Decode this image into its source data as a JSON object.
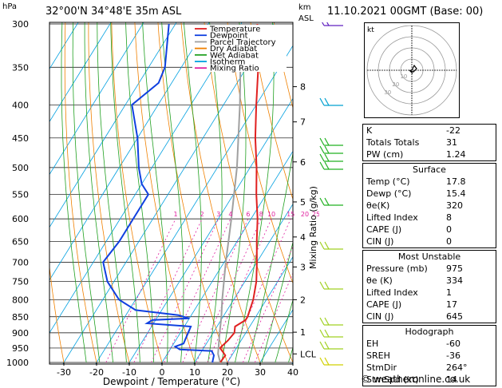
{
  "header": {
    "location": "32°00'N  34°48'E  35m  ASL",
    "datetime": "11.10.2021  00GMT  (Base: 00)",
    "hpa_label": "hPa",
    "km_label": "km",
    "asl_label": "ASL"
  },
  "chart_data": {
    "type": "skew-t",
    "xlabel": "Dewpoint / Temperature (°C)",
    "ylabel_right": "Mixing Ratio (g/kg)",
    "x_ticks": [
      -30,
      -20,
      -10,
      0,
      10,
      20,
      30,
      40
    ],
    "pressure_ticks": [
      300,
      350,
      400,
      450,
      500,
      550,
      600,
      650,
      700,
      750,
      800,
      850,
      900,
      950,
      1000
    ],
    "km_ticks": [
      {
        "label": "8",
        "p": 375
      },
      {
        "label": "7",
        "p": 425
      },
      {
        "label": "6",
        "p": 490
      },
      {
        "label": "5",
        "p": 565
      },
      {
        "label": "4",
        "p": 640
      },
      {
        "label": "3",
        "p": 712
      },
      {
        "label": "2",
        "p": 800
      },
      {
        "label": "1",
        "p": 898
      },
      {
        "label": "LCL",
        "p": 970
      }
    ],
    "mixing_ratio_labels": [
      "1",
      "2",
      "3",
      "4",
      "6",
      "8",
      "10",
      "15",
      "20",
      "25"
    ],
    "legend": [
      {
        "name": "Temperature",
        "color": "#e02020"
      },
      {
        "name": "Dewpoint",
        "color": "#1040e0"
      },
      {
        "name": "Parcel Trajectory",
        "color": "#a0a0a0"
      },
      {
        "name": "Dry Adiabat",
        "color": "#f08000"
      },
      {
        "name": "Wet Adiabat",
        "color": "#20a020"
      },
      {
        "name": "Isotherm",
        "color": "#00a0e0"
      },
      {
        "name": "Mixing Ratio",
        "color": "#e020a0"
      }
    ],
    "temperature": [
      [
        1000,
        17.8
      ],
      [
        975,
        18.0
      ],
      [
        950,
        15.0
      ],
      [
        925,
        16.0
      ],
      [
        900,
        16.5
      ],
      [
        880,
        15.5
      ],
      [
        860,
        17.5
      ],
      [
        850,
        17.5
      ],
      [
        800,
        16.0
      ],
      [
        750,
        13.5
      ],
      [
        700,
        10.0
      ],
      [
        650,
        6.0
      ],
      [
        600,
        2.0
      ],
      [
        550,
        -3.0
      ],
      [
        500,
        -8.0
      ],
      [
        450,
        -14.0
      ],
      [
        400,
        -20.0
      ],
      [
        350,
        -26.5
      ],
      [
        300,
        -35.0
      ]
    ],
    "dewpoint": [
      [
        1000,
        15.4
      ],
      [
        975,
        14.5
      ],
      [
        960,
        13.0
      ],
      [
        955,
        3.0
      ],
      [
        945,
        1.0
      ],
      [
        935,
        3.0
      ],
      [
        880,
        2.0
      ],
      [
        870,
        -12.0
      ],
      [
        860,
        -11.0
      ],
      [
        855,
        0.0
      ],
      [
        845,
        -4.0
      ],
      [
        830,
        -18.0
      ],
      [
        800,
        -25.0
      ],
      [
        750,
        -32.0
      ],
      [
        700,
        -37.0
      ],
      [
        650,
        -36.0
      ],
      [
        600,
        -36.0
      ],
      [
        550,
        -36.0
      ],
      [
        530,
        -40.0
      ],
      [
        500,
        -44.0
      ],
      [
        450,
        -50.0
      ],
      [
        400,
        -58.0
      ],
      [
        370,
        -54.0
      ],
      [
        350,
        -55.0
      ],
      [
        300,
        -62.0
      ]
    ],
    "parcel": [
      [
        1000,
        17.8
      ],
      [
        970,
        15.5
      ],
      [
        900,
        12.0
      ],
      [
        850,
        9.5
      ],
      [
        800,
        6.5
      ],
      [
        700,
        0.5
      ],
      [
        600,
        -6.0
      ],
      [
        500,
        -14.0
      ],
      [
        400,
        -25.0
      ],
      [
        300,
        -40.0
      ]
    ],
    "hodograph": {
      "label": "kt",
      "rings": [
        10,
        20,
        30,
        40
      ],
      "ring_labels": [
        "10",
        "20",
        "30"
      ]
    }
  },
  "indices": {
    "k": {
      "label": "K",
      "value": "-22"
    },
    "tt": {
      "label": "Totals Totals",
      "value": "31"
    },
    "pw": {
      "label": "PW (cm)",
      "value": "1.24"
    }
  },
  "surface": {
    "title": "Surface",
    "rows": [
      {
        "label": "Temp (°C)",
        "value": "17.8"
      },
      {
        "label": "Dewp (°C)",
        "value": "15.4"
      },
      {
        "label": "θe(K)",
        "value": "320"
      },
      {
        "label": "Lifted Index",
        "value": "8"
      },
      {
        "label": "CAPE (J)",
        "value": "0"
      },
      {
        "label": "CIN (J)",
        "value": "0"
      }
    ]
  },
  "most_unstable": {
    "title": "Most Unstable",
    "rows": [
      {
        "label": "Pressure (mb)",
        "value": "975"
      },
      {
        "label": "θe (K)",
        "value": "334"
      },
      {
        "label": "Lifted Index",
        "value": "1"
      },
      {
        "label": "CAPE (J)",
        "value": "17"
      },
      {
        "label": "CIN (J)",
        "value": "645"
      }
    ]
  },
  "hodograph_box": {
    "title": "Hodograph",
    "rows": [
      {
        "label": "EH",
        "value": "-60"
      },
      {
        "label": "SREH",
        "value": "-36"
      },
      {
        "label": "StmDir",
        "value": "264°"
      },
      {
        "label": "StmSpd (kt)",
        "value": "14"
      }
    ]
  },
  "credit": "© weatheronline.co.uk"
}
